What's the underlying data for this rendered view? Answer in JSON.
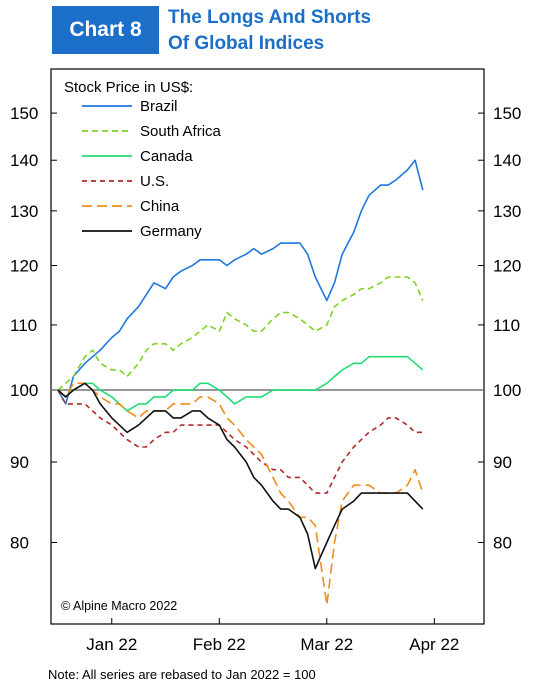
{
  "header": {
    "badge": "Chart 8",
    "title_line1": "The Longs And Shorts",
    "title_line2": "Of Global Indices"
  },
  "footnote": "Note: All series are rebased to Jan 2022 = 100",
  "chart_data": {
    "type": "line",
    "y_scale": "log",
    "ylim": [
      71,
      160
    ],
    "legend_title": "Stock Price in US$:",
    "legend_position": "top-left",
    "reference_line": 100,
    "y_ticks": [
      80,
      90,
      100,
      110,
      120,
      130,
      140,
      150
    ],
    "x_ticks": [
      "Jan 22",
      "Feb 22",
      "Mar 22",
      "Apr 22"
    ],
    "x_start": "2022-01-03",
    "x_end": "2022-04-13",
    "x_tick_dates": [
      "2022-01-17",
      "2022-02-14",
      "2022-03-14",
      "2022-04-11"
    ],
    "watermark": "© Alpine Macro 2022",
    "dates": [
      "2022-01-03",
      "2022-01-05",
      "2022-01-07",
      "2022-01-10",
      "2022-01-12",
      "2022-01-14",
      "2022-01-17",
      "2022-01-19",
      "2022-01-21",
      "2022-01-24",
      "2022-01-26",
      "2022-01-28",
      "2022-01-31",
      "2022-02-02",
      "2022-02-04",
      "2022-02-07",
      "2022-02-09",
      "2022-02-11",
      "2022-02-14",
      "2022-02-16",
      "2022-02-18",
      "2022-02-21",
      "2022-02-23",
      "2022-02-25",
      "2022-02-28",
      "2022-03-02",
      "2022-03-04",
      "2022-03-07",
      "2022-03-09",
      "2022-03-11",
      "2022-03-14",
      "2022-03-16",
      "2022-03-18",
      "2022-03-21",
      "2022-03-23",
      "2022-03-25",
      "2022-03-28",
      "2022-03-30",
      "2022-04-01",
      "2022-04-04",
      "2022-04-06",
      "2022-04-08"
    ],
    "series": [
      {
        "name": "Brazil",
        "color": "#1f78e0",
        "dash": "solid",
        "values": [
          100,
          98,
          102,
          104,
          105,
          106,
          108,
          109,
          111,
          113,
          115,
          117,
          116,
          118,
          119,
          120,
          121,
          121,
          121,
          120,
          121,
          122,
          123,
          122,
          123,
          124,
          124,
          124,
          122,
          118,
          114,
          117,
          122,
          126,
          130,
          133,
          135,
          135,
          136,
          138,
          140,
          134
        ]
      },
      {
        "name": "South Africa",
        "color": "#7ed321",
        "dash": "6,4",
        "values": [
          100,
          101,
          102,
          105,
          106,
          104,
          103,
          103,
          102,
          104,
          106,
          107,
          107,
          106,
          107,
          108,
          109,
          110,
          109,
          112,
          111,
          110,
          109,
          109,
          111,
          112,
          112,
          111,
          110,
          109,
          110,
          113,
          114,
          115,
          116,
          116,
          117,
          118,
          118,
          118,
          117,
          114
        ]
      },
      {
        "name": "Canada",
        "color": "#22dd77",
        "dash": "solid",
        "values": [
          100,
          99,
          100,
          101,
          101,
          100,
          99,
          98,
          97,
          98,
          98,
          99,
          99,
          100,
          100,
          100,
          101,
          101,
          100,
          99,
          98,
          99,
          99,
          99,
          100,
          100,
          100,
          100,
          100,
          100,
          101,
          102,
          103,
          104,
          104,
          105,
          105,
          105,
          105,
          105,
          104,
          103
        ]
      },
      {
        "name": "U.S.",
        "color": "#b22a2a",
        "dash": "5,4",
        "values": [
          100,
          98,
          98,
          98,
          97,
          96,
          95,
          94,
          93,
          92,
          92,
          93,
          94,
          94,
          95,
          95,
          95,
          95,
          95,
          94,
          93,
          92,
          91,
          90,
          89,
          89,
          88,
          88,
          87,
          86,
          86,
          88,
          90,
          92,
          93,
          94,
          95,
          96,
          96,
          95,
          94,
          94
        ]
      },
      {
        "name": "China",
        "color": "#f08c1a",
        "dash": "10,5",
        "values": [
          100,
          99,
          101,
          101,
          100,
          99,
          98,
          98,
          97,
          96,
          97,
          97,
          97,
          98,
          98,
          98,
          99,
          99,
          98,
          96,
          95,
          93,
          92,
          91,
          88,
          86,
          85,
          83,
          83,
          82,
          73,
          80,
          85,
          87,
          87,
          87,
          86,
          86,
          86,
          87,
          89,
          86
        ]
      },
      {
        "name": "Germany",
        "color": "#111111",
        "dash": "solid",
        "values": [
          100,
          99,
          100,
          101,
          100,
          98,
          96,
          95,
          94,
          95,
          96,
          97,
          97,
          96,
          96,
          97,
          97,
          96,
          95,
          93,
          92,
          90,
          88,
          87,
          85,
          84,
          84,
          83,
          81,
          77,
          80,
          82,
          84,
          85,
          86,
          86,
          86,
          86,
          86,
          86,
          85,
          84
        ]
      }
    ]
  }
}
